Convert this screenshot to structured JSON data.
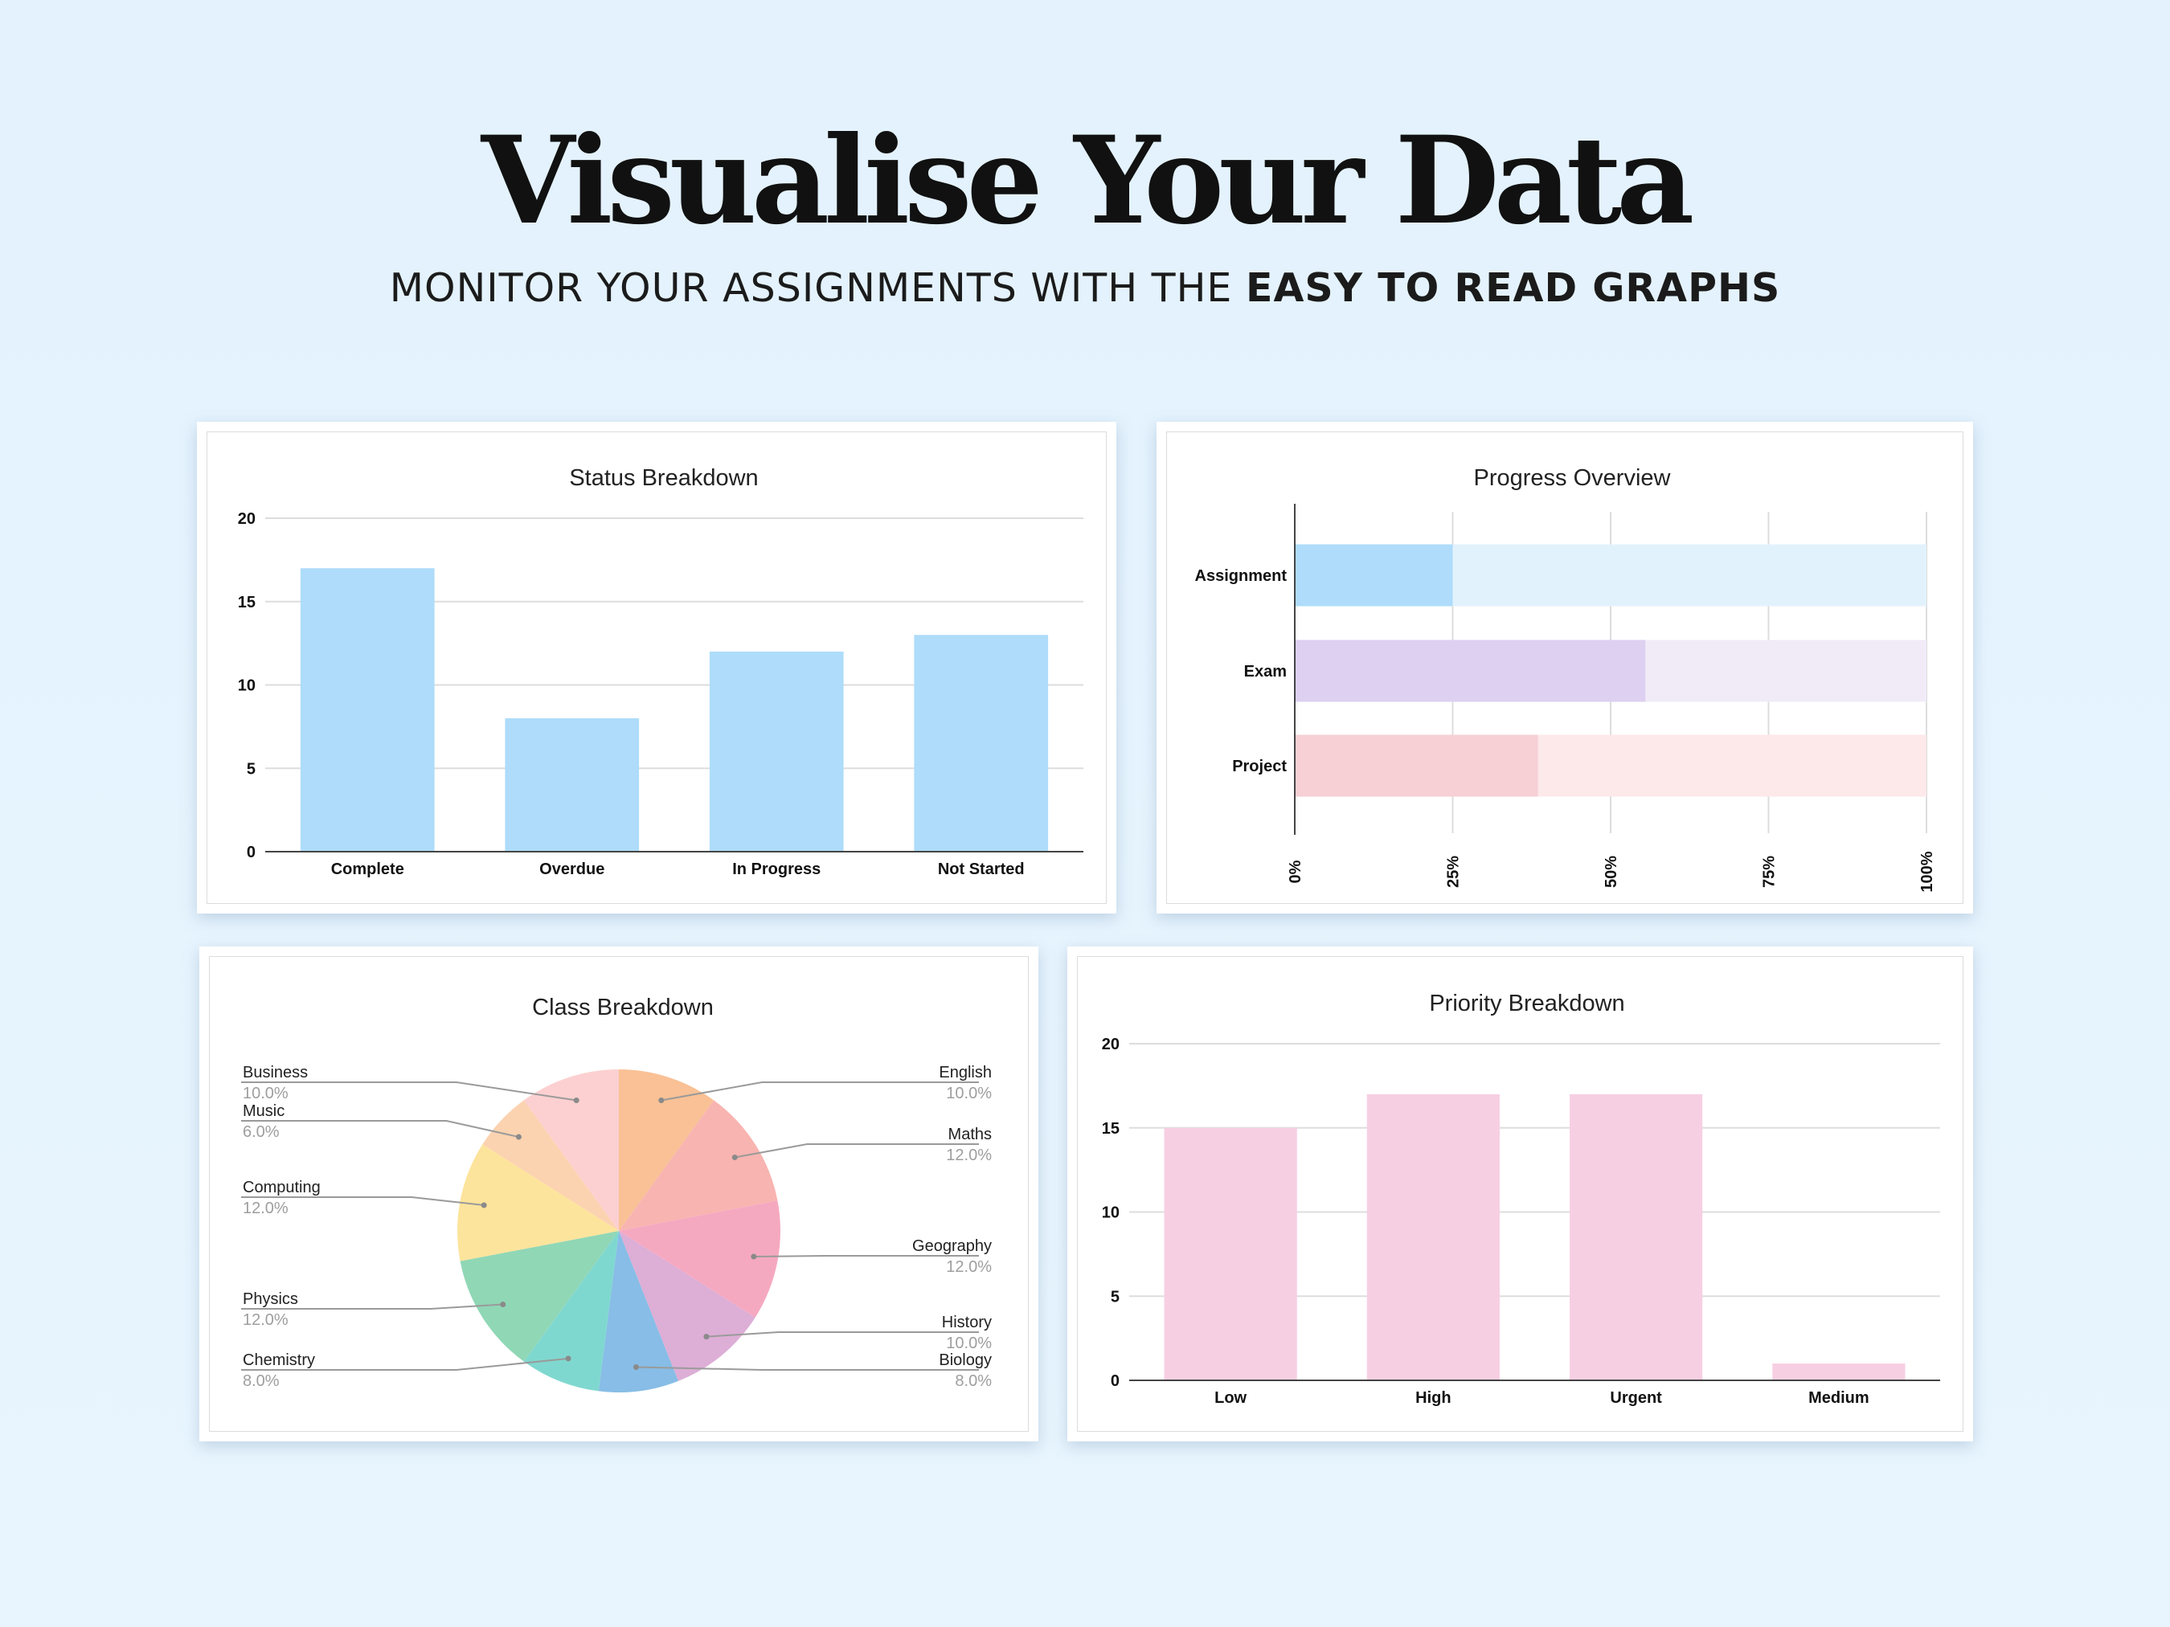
{
  "header": {
    "title": "Visualise Your Data",
    "subtitle_regular": "MONITOR YOUR ASSIGNMENTS WITH THE ",
    "subtitle_bold": "EASY TO READ GRAPHS"
  },
  "chart_data": [
    {
      "id": "status",
      "type": "bar",
      "title": "Status Breakdown",
      "categories": [
        "Complete",
        "Overdue",
        "In Progress",
        "Not Started"
      ],
      "values": [
        17,
        8,
        12,
        13
      ],
      "ylim": [
        0,
        20
      ],
      "yticks": [
        0,
        5,
        10,
        15,
        20
      ],
      "color": "#aedcfa",
      "grid": true
    },
    {
      "id": "progress",
      "type": "bar",
      "orientation": "horizontal",
      "title": "Progress Overview",
      "categories": [
        "Assignment",
        "Exam",
        "Project"
      ],
      "values": [
        25,
        55.5,
        38.5
      ],
      "xlim": [
        0,
        100
      ],
      "xticks": [
        "0%",
        "25%",
        "50%",
        "75%",
        "100%"
      ],
      "colors": [
        "#aedcfa",
        "#ddd0f0",
        "#f6d0d4"
      ],
      "track_colors": [
        "#e2f2fd",
        "#f1ebf8",
        "#fde8ea"
      ],
      "grid": true
    },
    {
      "id": "class",
      "type": "pie",
      "title": "Class Breakdown",
      "slices": [
        {
          "label": "English",
          "pct": "10.0%",
          "value": 10,
          "color": "#f9c195"
        },
        {
          "label": "Maths",
          "pct": "12.0%",
          "value": 12,
          "color": "#f8b4b0"
        },
        {
          "label": "Geography",
          "pct": "12.0%",
          "value": 12,
          "color": "#f5a9c0"
        },
        {
          "label": "History",
          "pct": "10.0%",
          "value": 10,
          "color": "#ddaed6"
        },
        {
          "label": "Biology",
          "pct": "8.0%",
          "value": 8,
          "color": "#87bde6"
        },
        {
          "label": "Chemistry",
          "pct": "8.0%",
          "value": 8,
          "color": "#7fd8cf"
        },
        {
          "label": "Physics",
          "pct": "12.0%",
          "value": 12,
          "color": "#90d7b6"
        },
        {
          "label": "Computing",
          "pct": "12.0%",
          "value": 12,
          "color": "#fde49c"
        },
        {
          "label": "Music",
          "pct": "6.0%",
          "value": 6,
          "color": "#fcd3b0"
        },
        {
          "label": "Business",
          "pct": "10.0%",
          "value": 10,
          "color": "#fcd0d0"
        }
      ]
    },
    {
      "id": "priority",
      "type": "bar",
      "title": "Priority Breakdown",
      "categories": [
        "Low",
        "High",
        "Urgent",
        "Medium"
      ],
      "values": [
        15,
        17,
        17,
        1
      ],
      "ylim": [
        0,
        20
      ],
      "yticks": [
        0,
        5,
        10,
        15,
        20
      ],
      "color": "#f7cfe3",
      "grid": true
    }
  ]
}
